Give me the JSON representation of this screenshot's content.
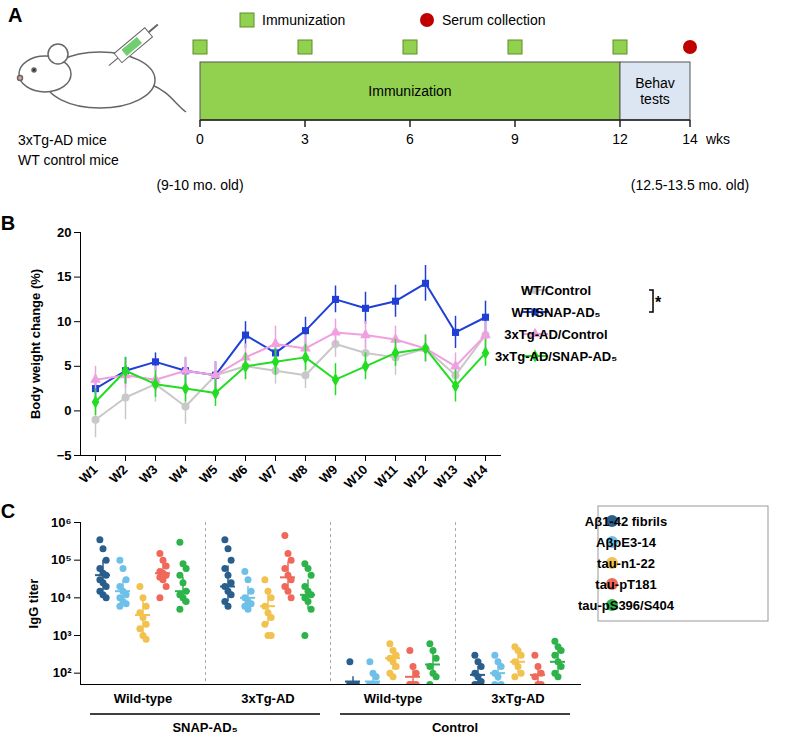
{
  "panels": [
    "A",
    "B",
    "C"
  ],
  "diagram": {
    "panel": "A",
    "subjects": [
      "3xTg-AD mice",
      "WT control mice"
    ],
    "legend": [
      {
        "label": "Immunization",
        "marker": "square",
        "color": "#92d050"
      },
      {
        "label": "Serum collection",
        "marker": "circle",
        "color": "#c00000"
      }
    ],
    "timeline": {
      "xlim": [
        0,
        14
      ],
      "ticks": [
        0,
        3,
        6,
        9,
        12,
        14
      ],
      "unit": "wks",
      "immunization_weeks": [
        0,
        3,
        6,
        9,
        12
      ],
      "serum_collection_weeks": [
        14
      ],
      "phases": [
        {
          "label": "Immunization",
          "start": 0,
          "end": 12,
          "color": "#92d050"
        },
        {
          "label": "Behav tests",
          "start": 12,
          "end": 14,
          "color": "#dce6f2"
        }
      ],
      "start_note": "(9-10 mo. old)",
      "end_note": "(12.5-13.5 mo. old)"
    }
  },
  "chart_data": [
    {
      "panel": "B",
      "type": "line",
      "y_label": "Body weight change (%)",
      "categories": [
        "W1",
        "W2",
        "W3",
        "W4",
        "W5",
        "W6",
        "W7",
        "W8",
        "W9",
        "W10",
        "W11",
        "W12",
        "W13",
        "W14"
      ],
      "ylim": [
        -5,
        20
      ],
      "yticks": [
        -5,
        0,
        5,
        10,
        15,
        20
      ],
      "legend": "right",
      "series": [
        {
          "name": "WT/Control",
          "color": "#c8c8c8",
          "marker": "circle",
          "values": [
            -1.0,
            1.5,
            3.0,
            0.5,
            4.0,
            5.0,
            4.5,
            4.0,
            7.5,
            6.5,
            6.0,
            7.0,
            4.0,
            8.5
          ],
          "error": [
            2.0,
            2.5,
            2.0,
            2.0,
            1.5,
            1.5,
            1.5,
            1.5,
            1.5,
            1.5,
            2.0,
            1.5,
            1.5,
            1.5
          ]
        },
        {
          "name": "WT/SNAP-AD₅",
          "color": "#1f3fd6",
          "marker": "square",
          "values": [
            2.5,
            4.5,
            5.5,
            4.5,
            4.0,
            8.5,
            6.5,
            9.0,
            12.5,
            11.5,
            12.3,
            14.3,
            8.8,
            10.5
          ],
          "error": [
            1.5,
            1.5,
            1.0,
            1.5,
            1.5,
            1.5,
            1.5,
            1.5,
            1.5,
            1.8,
            1.8,
            2.0,
            1.8,
            1.8
          ]
        },
        {
          "name": "3xTg-AD/Control",
          "color": "#f0a0e0",
          "marker": "triangle",
          "values": [
            3.5,
            4.0,
            3.5,
            4.5,
            4.0,
            6.0,
            7.5,
            7.0,
            8.8,
            8.5,
            8.0,
            7.0,
            5.0,
            8.5
          ],
          "error": [
            1.5,
            1.5,
            1.5,
            1.5,
            1.5,
            1.5,
            2.0,
            1.5,
            1.5,
            1.5,
            1.5,
            1.5,
            1.5,
            1.5
          ]
        },
        {
          "name": "3xTg-AD/SNAP-AD₅",
          "color": "#22dd22",
          "marker": "diamond",
          "values": [
            1.0,
            4.5,
            3.0,
            2.5,
            2.0,
            5.0,
            5.5,
            6.0,
            3.5,
            5.0,
            6.5,
            7.0,
            2.8,
            6.5
          ],
          "error": [
            1.5,
            1.5,
            1.5,
            1.5,
            1.5,
            1.5,
            1.5,
            1.5,
            1.8,
            1.5,
            1.5,
            1.5,
            1.8,
            1.5
          ]
        }
      ],
      "annotations": [
        {
          "text": "*",
          "series": [
            "WT/Control",
            "WT/SNAP-AD₅"
          ]
        }
      ]
    },
    {
      "panel": "C",
      "type": "scatter",
      "y_label": "IgG titer",
      "log": "y",
      "categories": [
        "Wild-type",
        "3xTg-AD",
        "Wild-type",
        "3xTg-AD"
      ],
      "category_groups": [
        {
          "name": "SNAP-AD₅",
          "categories": [
            0,
            1
          ]
        },
        {
          "name": "Control",
          "categories": [
            2,
            3
          ]
        }
      ],
      "ylim": [
        50,
        1000000
      ],
      "yticks": [
        {
          "value": 100,
          "label": "10²"
        },
        {
          "value": 1000,
          "label": "10³"
        },
        {
          "value": 10000,
          "label": "10⁴"
        },
        {
          "value": 100000,
          "label": "10⁵"
        },
        {
          "value": 1000000,
          "label": "10⁶"
        }
      ],
      "legend": "right",
      "series": [
        {
          "name": "Aβ1-42 fibrils",
          "color": "#2a5e8c",
          "values": [
            [
              350000,
              200000,
              100000,
              60000,
              45000,
              40000,
              30000,
              25000,
              20000,
              15000,
              12000,
              10000
            ],
            [
              350000,
              200000,
              100000,
              60000,
              40000,
              25000,
              20000,
              15000,
              12000,
              8000,
              6000
            ],
            [
              200,
              50,
              50,
              50,
              50,
              50,
              50
            ],
            [
              300,
              200,
              150,
              100,
              80,
              60,
              50,
              50
            ]
          ],
          "mean": [
            40000,
            20000,
            60,
            90
          ],
          "error": [
            [
              15000,
              100000
            ],
            [
              8000,
              70000
            ],
            [
              50,
              80
            ],
            [
              55,
              150
            ]
          ]
        },
        {
          "name": "AβpE3-14",
          "color": "#6fc0e8",
          "values": [
            [
              100000,
              60000,
              30000,
              20000,
              15000,
              12000,
              10000,
              8000,
              7000,
              6000
            ],
            [
              50000,
              30000,
              15000,
              10000,
              8000,
              7000,
              6000,
              5000
            ],
            [
              200,
              100,
              80,
              50,
              50,
              50,
              50
            ],
            [
              300,
              200,
              150,
              100,
              80,
              50,
              50
            ]
          ],
          "mean": [
            15000,
            10000,
            60,
            100
          ],
          "error": [
            [
              7000,
              30000
            ],
            [
              5000,
              20000
            ],
            [
              50,
              90
            ],
            [
              60,
              160
            ]
          ]
        },
        {
          "name": "tau-n1-22",
          "color": "#f2c14e",
          "values": [
            [
              20000,
              10000,
              6000,
              4000,
              3000,
              2000,
              1500,
              1000,
              800
            ],
            [
              30000,
              15000,
              10000,
              6000,
              4000,
              3000,
              2000,
              1000,
              1000
            ],
            [
              600,
              400,
              300,
              250,
              200,
              150,
              100,
              80
            ],
            [
              500,
              400,
              300,
              200,
              150,
              100,
              80
            ]
          ],
          "mean": [
            3500,
            6000,
            250,
            200
          ],
          "error": [
            [
              1000,
              10000
            ],
            [
              2000,
              15000
            ],
            [
              120,
              450
            ],
            [
              100,
              400
            ]
          ]
        },
        {
          "name": "tau-pT181",
          "color": "#f0685a",
          "values": [
            [
              150000,
              100000,
              70000,
              50000,
              45000,
              40000,
              35000,
              30000,
              20000,
              10000
            ],
            [
              450000,
              150000,
              100000,
              60000,
              40000,
              30000,
              20000,
              15000,
              10000
            ],
            [
              400,
              150,
              100,
              50,
              50,
              50,
              50
            ],
            [
              300,
              150,
              100,
              80,
              50,
              50
            ]
          ],
          "mean": [
            45000,
            35000,
            80,
            90
          ],
          "error": [
            [
              25000,
              80000
            ],
            [
              15000,
              90000
            ],
            [
              50,
              150
            ],
            [
              55,
              150
            ]
          ]
        },
        {
          "name": "tau-pS396/S404",
          "color": "#2db34a",
          "values": [
            [
              300000,
              80000,
              60000,
              40000,
              25000,
              15000,
              12000,
              10000,
              8000,
              5000
            ],
            [
              80000,
              60000,
              40000,
              20000,
              15000,
              12000,
              10000,
              8000,
              5000,
              1000
            ],
            [
              600,
              400,
              250,
              150,
              100,
              80,
              50
            ],
            [
              700,
              500,
              400,
              300,
              200,
              150,
              100,
              80
            ]
          ],
          "mean": [
            15000,
            12000,
            170,
            200
          ],
          "error": [
            [
              7000,
              35000
            ],
            [
              5000,
              30000
            ],
            [
              80,
              350
            ],
            [
              100,
              400
            ]
          ]
        }
      ]
    }
  ]
}
